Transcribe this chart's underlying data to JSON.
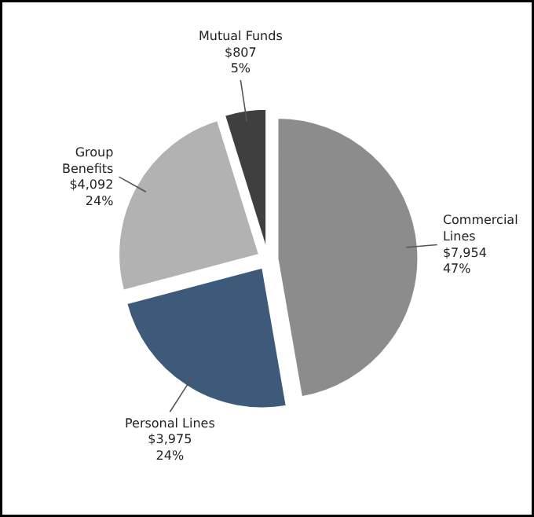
{
  "chart_data": {
    "type": "pie",
    "categories": [
      "Commercial Lines",
      "Personal Lines",
      "Group Benefits",
      "Mutual Funds"
    ],
    "values": [
      7954,
      3975,
      4092,
      807
    ],
    "value_labels": [
      "$7,954\n47%",
      "$3,975\n24%",
      "$4,092\n24%",
      "$807\n5%"
    ],
    "colors": [
      "#8c8c8c",
      "#3e5a7a",
      "#b2b2b2",
      "#3f3f3f"
    ]
  }
}
